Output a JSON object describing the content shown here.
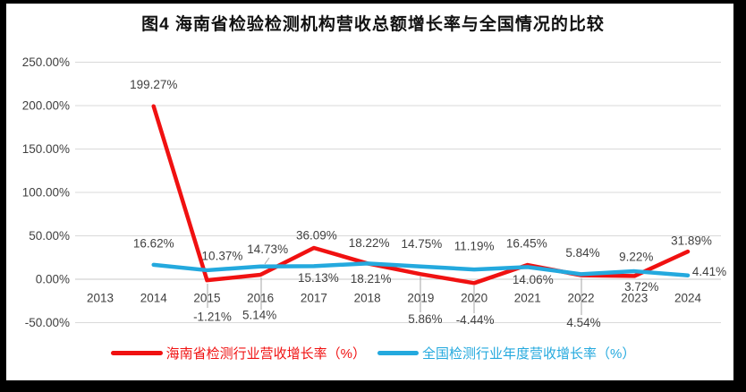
{
  "chart_data": {
    "type": "line",
    "title": "图4 海南省检验检测机构营收总额增长率与全国情况的比较",
    "categories": [
      "2013",
      "2014",
      "2015",
      "2016",
      "2017",
      "2018",
      "2019",
      "2020",
      "2021",
      "2022",
      "2023",
      "2024"
    ],
    "series": [
      {
        "name": "海南省检测行业营收增长率（%）",
        "color": "#F01111",
        "values": [
          null,
          199.27,
          -1.21,
          5.14,
          36.09,
          18.22,
          5.86,
          -4.44,
          16.45,
          4.54,
          3.72,
          31.89
        ]
      },
      {
        "name": "全国检测行业年度营收增长率（%）",
        "color": "#24A9DE",
        "values": [
          null,
          16.62,
          10.37,
          14.73,
          15.13,
          18.21,
          14.75,
          11.19,
          14.06,
          5.84,
          9.22,
          4.41
        ]
      }
    ],
    "y_ticks": [
      250,
      200,
      150,
      100,
      50,
      0,
      -50
    ],
    "y_tick_labels": [
      "250.00%",
      "200.00%",
      "150.00%",
      "100.00%",
      "50.00%",
      "0.00%",
      "-50.00%"
    ],
    "ylim": [
      -50,
      250
    ],
    "grid": true,
    "legend_position": "bottom",
    "data_label_format": "0.00%",
    "grid_color": "#D9D9D9",
    "zero_line_color": "#C8C8C8",
    "leader_line_color": "#A6A6A6",
    "label_text_color": "#404040"
  }
}
